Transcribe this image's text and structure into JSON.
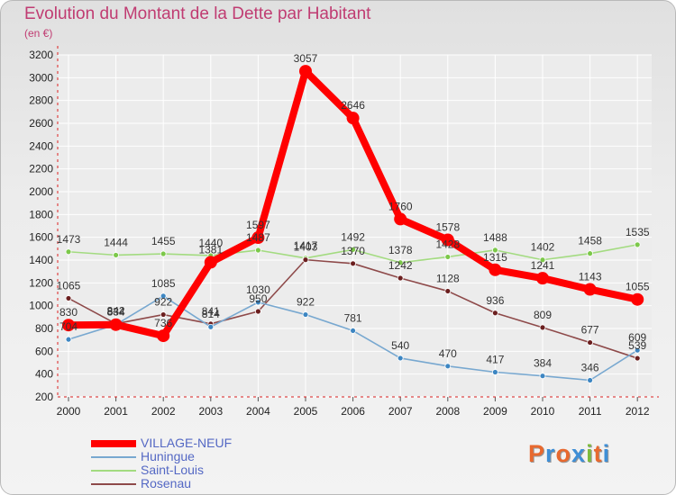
{
  "title": "Evolution du Montant de la Dette par Habitant",
  "subtitle": "(en €)",
  "logo": {
    "text": "Proxiti",
    "letter_colors": [
      "#e8692f",
      "#3f8fd6",
      "#e8692f",
      "#3f8fd6",
      "#7dbb3c",
      "#e8692f",
      "#3f8fd6"
    ]
  },
  "chart_data": {
    "type": "line",
    "title": "Evolution du Montant de la Dette par Habitant",
    "ylabel": "(en €)",
    "xlabel": "",
    "categories": [
      "2000",
      "2001",
      "2002",
      "2003",
      "2004",
      "2005",
      "2006",
      "2007",
      "2008",
      "2009",
      "2010",
      "2011",
      "2012"
    ],
    "ylim": [
      200,
      3200
    ],
    "yticks": [
      200,
      400,
      600,
      800,
      1000,
      1200,
      1400,
      1600,
      1800,
      2000,
      2200,
      2400,
      2600,
      2800,
      3000,
      3200
    ],
    "grid": true,
    "series": [
      {
        "name": "Saint-Louis",
        "color": "#a3db80",
        "marker": "#7cc84a",
        "emphasis": false,
        "values": [
          1473,
          1444,
          1455,
          1440,
          1487,
          1417,
          1492,
          1378,
          1428,
          1488,
          1402,
          1458,
          1535
        ]
      },
      {
        "name": "Rosenau",
        "color": "#8e4a4a",
        "marker": "#6b1f1f",
        "emphasis": false,
        "values": [
          1065,
          842,
          922,
          841,
          950,
          1403,
          1370,
          1242,
          1128,
          936,
          809,
          677,
          539
        ]
      },
      {
        "name": "Huningue",
        "color": "#78a8d0",
        "marker": "#3d86c2",
        "emphasis": false,
        "values": [
          704,
          834,
          1085,
          814,
          1030,
          922,
          781,
          540,
          470,
          417,
          384,
          346,
          609
        ]
      },
      {
        "name": "VILLAGE-NEUF",
        "color": "#ff0000",
        "marker": "#ff0000",
        "emphasis": true,
        "values": [
          830,
          834,
          736,
          1381,
          1597,
          3057,
          2646,
          1760,
          1578,
          1315,
          1241,
          1143,
          1055
        ]
      }
    ],
    "legend_order": [
      "VILLAGE-NEUF",
      "Huningue",
      "Saint-Louis",
      "Rosenau"
    ]
  }
}
